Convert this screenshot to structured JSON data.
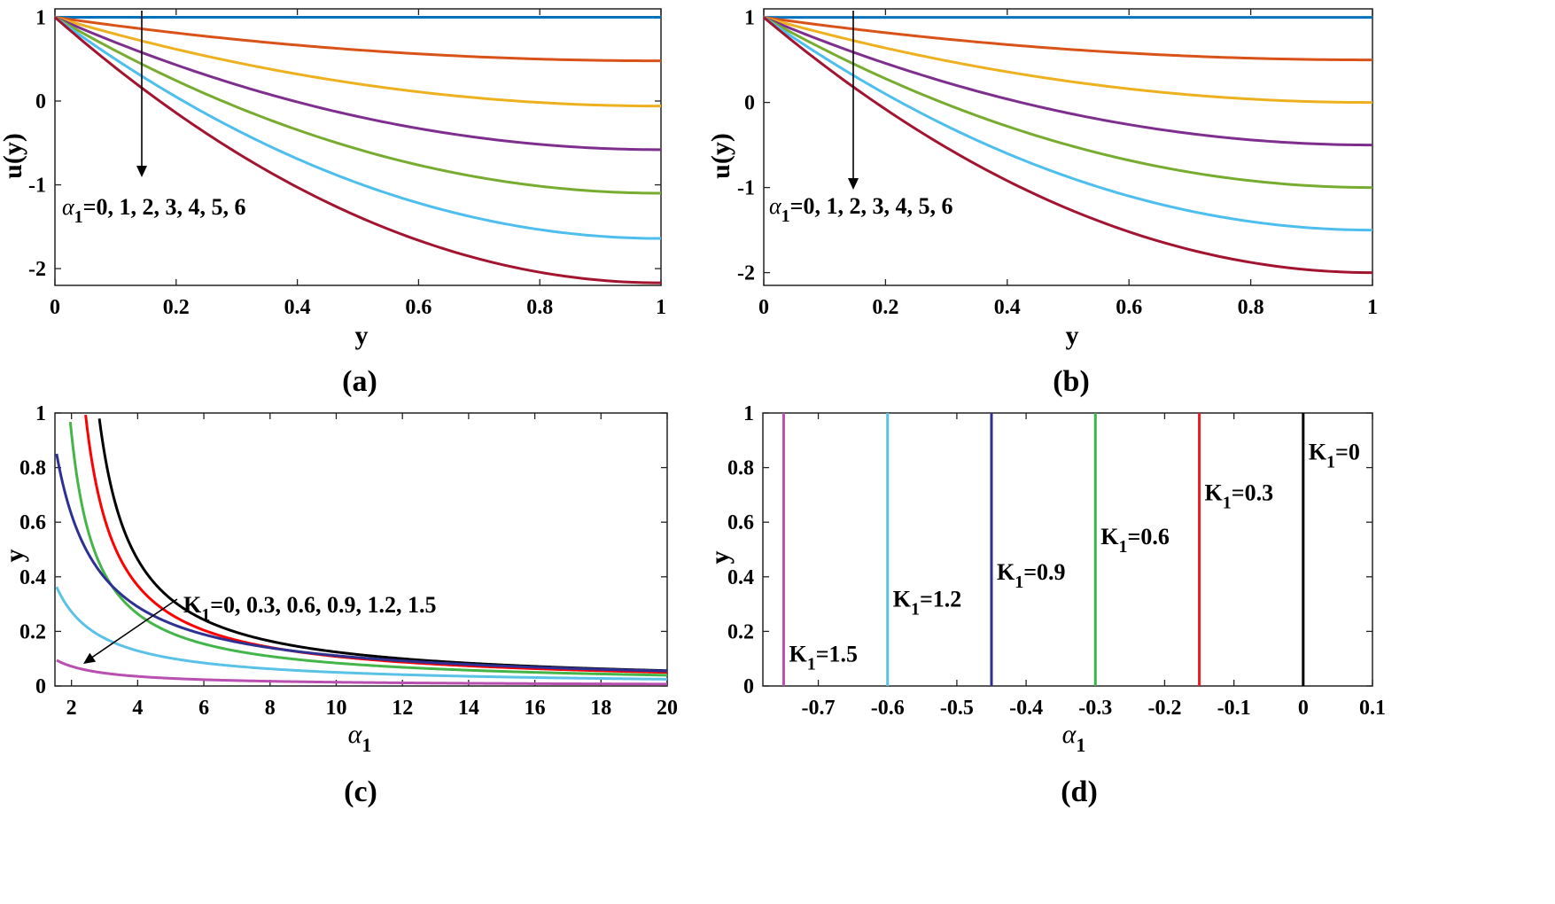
{
  "colors": {
    "matlab": [
      "#0072BD",
      "#D95319",
      "#EDB120",
      "#7E2F8E",
      "#77AC30",
      "#4DBEEE",
      "#A2142F"
    ],
    "panel_c": [
      "#000000",
      "#FF0000",
      "#44B649",
      "#2E3192",
      "#5BC2E7",
      "#B94FB0"
    ],
    "panel_d": [
      "#000000",
      "#ED1C24",
      "#39B54A",
      "#2E3192",
      "#5BC2E7",
      "#B94FB0"
    ]
  },
  "chart_data": [
    {
      "id": "a",
      "type": "line",
      "panel_label": "(a)",
      "xlabel": "y",
      "ylabel": "u(y)",
      "xlim": [
        0,
        1
      ],
      "ylim": [
        -2.2,
        1.1
      ],
      "xticks": [
        "0",
        "0.2",
        "0.4",
        "0.6",
        "0.8",
        "1"
      ],
      "xtick_values": [
        0,
        0.2,
        0.4,
        0.6,
        0.8,
        1
      ],
      "yticks": [
        "1",
        "0",
        "-1",
        "-2"
      ],
      "ytick_values": [
        1,
        0,
        -1,
        -2
      ],
      "annotation": {
        "sym": "α",
        "sub": "1",
        "text": "=0, 1, 2, 3, 4, 5, 6"
      },
      "series": [
        {
          "name": "α1=0",
          "end": 1.0
        },
        {
          "name": "α1=1",
          "end": 0.48
        },
        {
          "name": "α1=2",
          "end": -0.06
        },
        {
          "name": "α1=3",
          "end": -0.58
        },
        {
          "name": "α1=4",
          "end": -1.1
        },
        {
          "name": "α1=5",
          "end": -1.64
        },
        {
          "name": "α1=6",
          "end": -2.17
        }
      ]
    },
    {
      "id": "b",
      "type": "line",
      "panel_label": "(b)",
      "xlabel": "y",
      "ylabel": "u(y)",
      "xlim": [
        0,
        1
      ],
      "ylim": [
        -2.15,
        1.1
      ],
      "xticks": [
        "0",
        "0.2",
        "0.4",
        "0.6",
        "0.8",
        "1"
      ],
      "xtick_values": [
        0,
        0.2,
        0.4,
        0.6,
        0.8,
        1
      ],
      "yticks": [
        "1",
        "0",
        "-1",
        "-2"
      ],
      "ytick_values": [
        1,
        0,
        -1,
        -2
      ],
      "annotation": {
        "sym": "α",
        "sub": "1",
        "text": "=0, 1, 2, 3, 4, 5, 6"
      },
      "series": [
        {
          "name": "α1=0",
          "end": 1.0
        },
        {
          "name": "α1=1",
          "end": 0.5
        },
        {
          "name": "α1=2",
          "end": 0.0
        },
        {
          "name": "α1=3",
          "end": -0.5
        },
        {
          "name": "α1=4",
          "end": -1.0
        },
        {
          "name": "α1=5",
          "end": -1.5
        },
        {
          "name": "α1=6",
          "end": -2.0
        }
      ]
    },
    {
      "id": "c",
      "type": "line",
      "panel_label": "(c)",
      "xlabel": "α",
      "xlabel_sub": "1",
      "ylabel": "y",
      "xlim": [
        1.5,
        20
      ],
      "ylim": [
        0,
        1
      ],
      "xticks": [
        "2",
        "4",
        "6",
        "8",
        "10",
        "12",
        "14",
        "16",
        "18",
        "20"
      ],
      "xtick_values": [
        2,
        4,
        6,
        8,
        10,
        12,
        14,
        16,
        18,
        20
      ],
      "yticks": [
        "0",
        "0.2",
        "0.4",
        "0.6",
        "0.8",
        "1"
      ],
      "ytick_values": [
        0,
        0.2,
        0.4,
        0.6,
        0.8,
        1
      ],
      "annotation": {
        "text": "K",
        "sub": "1",
        "rest": "=0, 0.3, 0.6, 0.9, 1.2, 1.5"
      },
      "series": [
        {
          "name": "K1=0",
          "K": 0
        },
        {
          "name": "K1=0.3",
          "K": 0.3
        },
        {
          "name": "K1=0.6",
          "K": 0.6
        },
        {
          "name": "K1=0.9",
          "K": 0.9
        },
        {
          "name": "K1=1.2",
          "K": 1.2
        },
        {
          "name": "K1=1.5",
          "K": 1.5
        }
      ]
    },
    {
      "id": "d",
      "type": "line",
      "panel_label": "(d)",
      "xlabel": "α",
      "xlabel_sub": "1",
      "ylabel": "y",
      "xlim": [
        -0.78,
        0.1
      ],
      "ylim": [
        0,
        1
      ],
      "xticks": [
        "-0.7",
        "-0.6",
        "-0.5",
        "-0.4",
        "-0.3",
        "-0.2",
        "-0.1",
        "0",
        "0.1"
      ],
      "xtick_values": [
        -0.7,
        -0.6,
        -0.5,
        -0.4,
        -0.3,
        -0.2,
        -0.1,
        0,
        0.1
      ],
      "yticks": [
        "0",
        "0.2",
        "0.4",
        "0.6",
        "0.8",
        "1"
      ],
      "ytick_values": [
        0,
        0.2,
        0.4,
        0.6,
        0.8,
        1
      ],
      "series": [
        {
          "name": "K1=0",
          "label_main": "K",
          "label_sub": "1",
          "label_rest": "=0",
          "x": 0,
          "label_x": 0.0,
          "label_y": 0.83
        },
        {
          "name": "K1=0.3",
          "label_main": "K",
          "label_sub": "1",
          "label_rest": "=0.3",
          "x": -0.15,
          "label_x": -0.15,
          "label_y": 0.68
        },
        {
          "name": "K1=0.6",
          "label_main": "K",
          "label_sub": "1",
          "label_rest": "=0.6",
          "x": -0.3,
          "label_x": -0.3,
          "label_y": 0.52
        },
        {
          "name": "K1=0.9",
          "label_main": "K",
          "label_sub": "1",
          "label_rest": "=0.9",
          "x": -0.45,
          "label_x": -0.45,
          "label_y": 0.39
        },
        {
          "name": "K1=1.2",
          "label_main": "K",
          "label_sub": "1",
          "label_rest": "=1.2",
          "x": -0.6,
          "label_x": -0.6,
          "label_y": 0.29
        },
        {
          "name": "K1=1.5",
          "label_main": "K",
          "label_sub": "1",
          "label_rest": "=1.5",
          "x": -0.75,
          "label_x": -0.75,
          "label_y": 0.09
        }
      ]
    }
  ]
}
